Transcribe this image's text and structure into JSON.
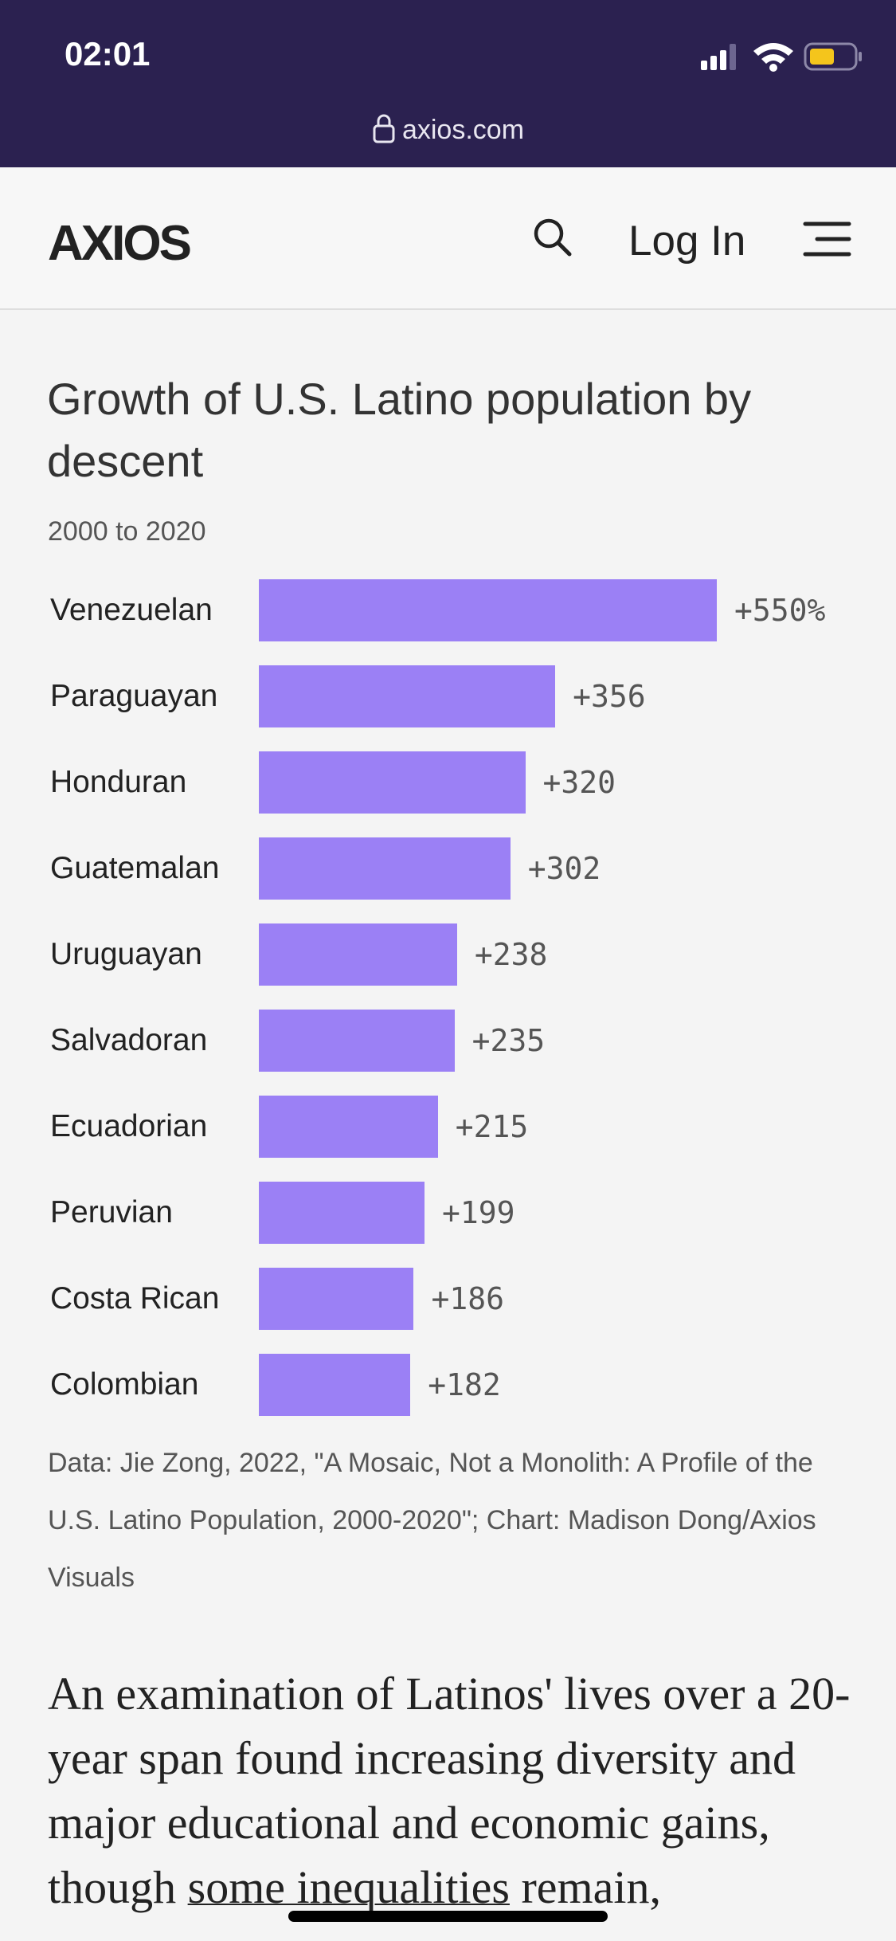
{
  "status_bar": {
    "time": "02:01",
    "url": "axios.com"
  },
  "header": {
    "logo": "AXIOS",
    "login": "Log In"
  },
  "chart_data": {
    "type": "bar",
    "orientation": "horizontal",
    "title": "Growth of U.S. Latino population by descent",
    "subtitle": "2000 to 2020",
    "categories": [
      "Venezuelan",
      "Paraguayan",
      "Honduran",
      "Guatemalan",
      "Uruguayan",
      "Salvadoran",
      "Ecuadorian",
      "Peruvian",
      "Costa Rican",
      "Colombian"
    ],
    "values": [
      550,
      356,
      320,
      302,
      238,
      235,
      215,
      199,
      186,
      182
    ],
    "value_labels": [
      "+550%",
      "+356",
      "+320",
      "+302",
      "+238",
      "+235",
      "+215",
      "+199",
      "+186",
      "+182"
    ],
    "color": "#9b80f5",
    "source": "Data: Jie Zong, 2022, \"A Mosaic, Not a Monolith: A Profile of the U.S. Latino Population, 2000-2020\"; Chart: Madison Dong/Axios Visuals"
  },
  "article": {
    "before_link": "An examination of Latinos' lives over a 20-year span found increasing diversity and major educational and economic gains, though ",
    "link": "some inequalities",
    "after_link": " remain,"
  }
}
